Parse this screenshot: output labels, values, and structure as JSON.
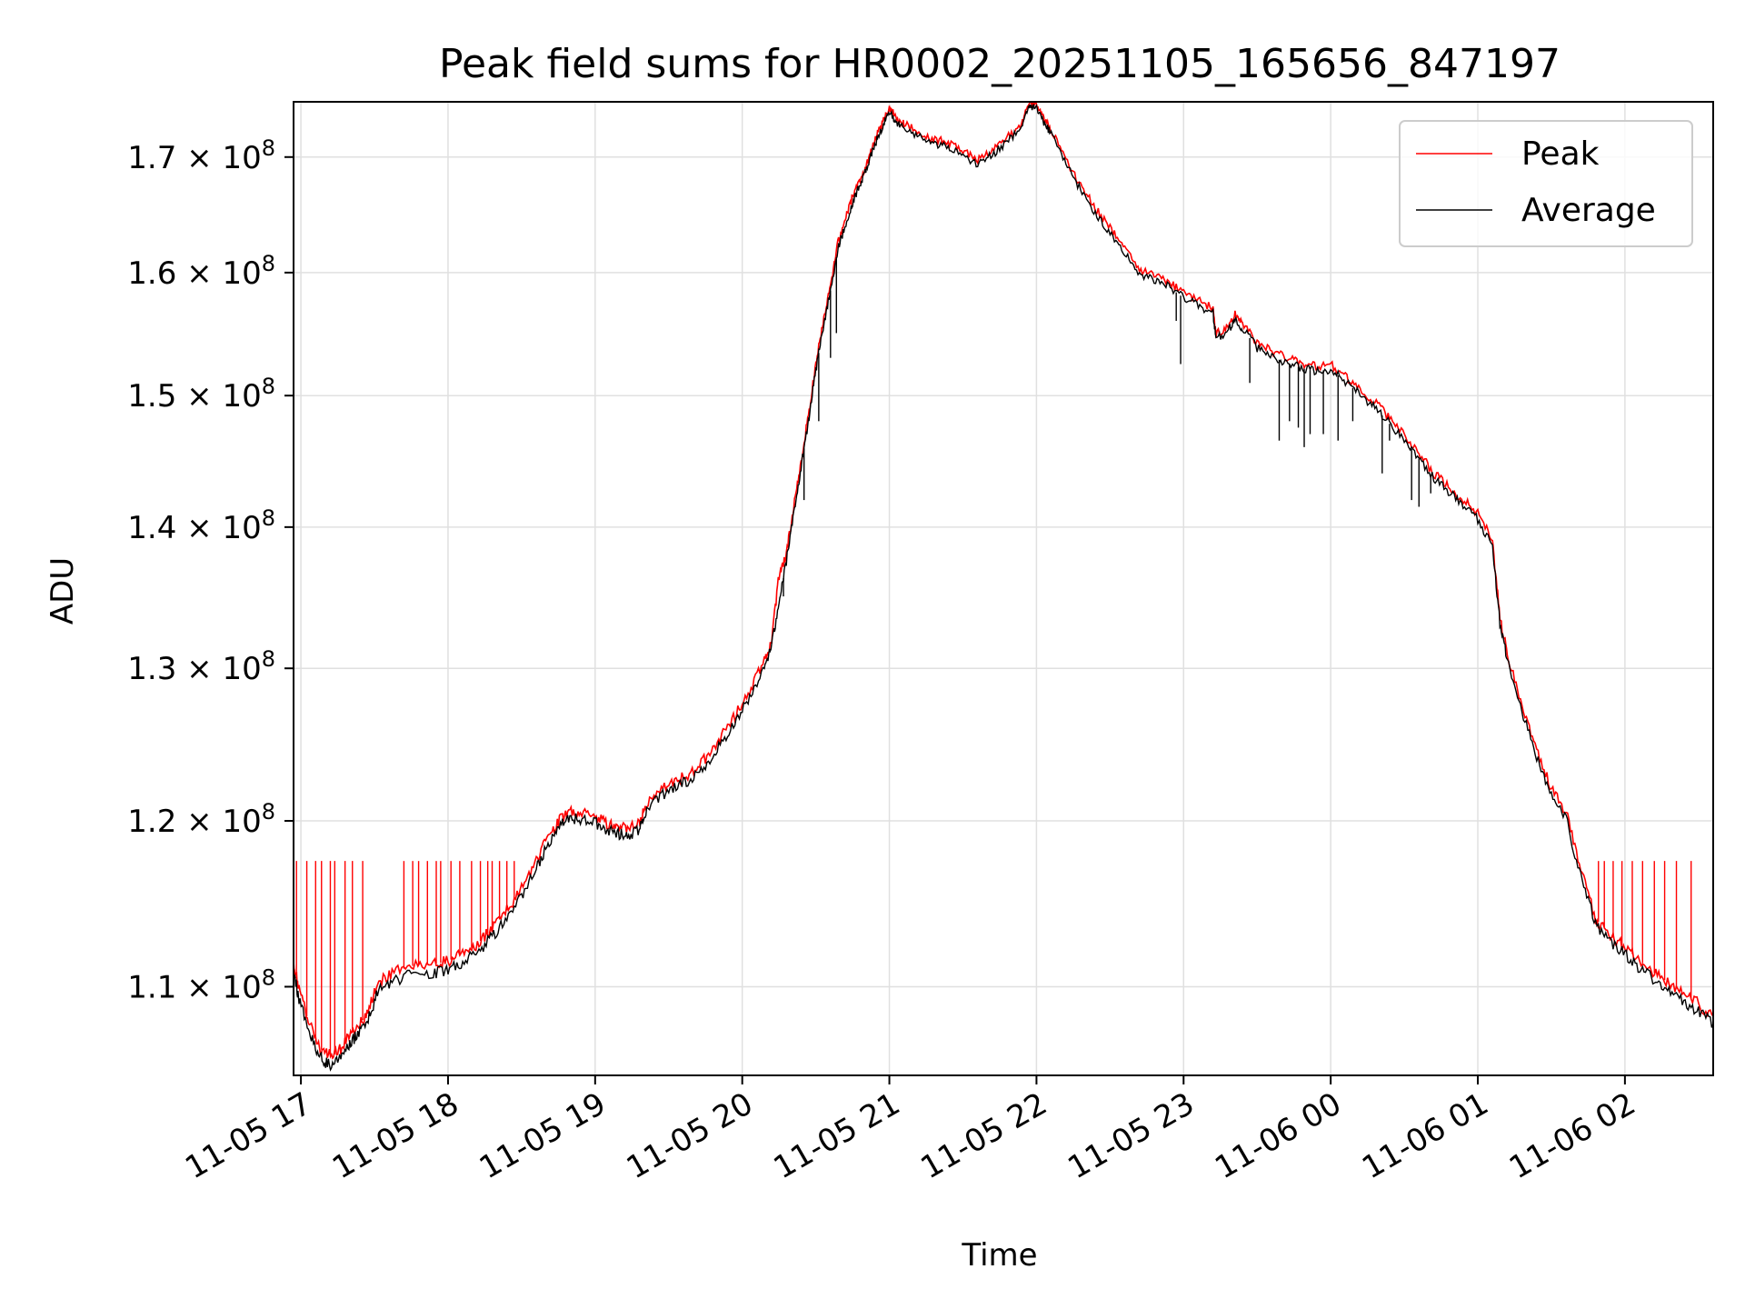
{
  "chart_data": {
    "type": "line",
    "title": "Peak field sums for HR0002_20251105_165656_847197",
    "xlabel": "Time",
    "ylabel": "ADU",
    "yscale": "log",
    "xlim_hours": [
      16.95,
      26.6
    ],
    "ylim": [
      105000000,
      175000000
    ],
    "grid": true,
    "legend_position": "top-right",
    "xticks": [
      {
        "hour": 17,
        "label": "11-05 17"
      },
      {
        "hour": 18,
        "label": "11-05 18"
      },
      {
        "hour": 19,
        "label": "11-05 19"
      },
      {
        "hour": 20,
        "label": "11-05 20"
      },
      {
        "hour": 21,
        "label": "11-05 21"
      },
      {
        "hour": 22,
        "label": "11-05 22"
      },
      {
        "hour": 23,
        "label": "11-05 23"
      },
      {
        "hour": 24,
        "label": "11-06 00"
      },
      {
        "hour": 25,
        "label": "11-06 01"
      },
      {
        "hour": 26,
        "label": "11-06 02"
      }
    ],
    "yticks": [
      {
        "value": 110000000,
        "mantissa": "1.1"
      },
      {
        "value": 120000000,
        "mantissa": "1.2"
      },
      {
        "value": 130000000,
        "mantissa": "1.3"
      },
      {
        "value": 140000000,
        "mantissa": "1.4"
      },
      {
        "value": 150000000,
        "mantissa": "1.5"
      },
      {
        "value": 160000000,
        "mantissa": "1.6"
      },
      {
        "value": 170000000,
        "mantissa": "1.7"
      }
    ],
    "ytick_base": "10",
    "ytick_exponent": "8",
    "ytick_times": "×",
    "series": [
      {
        "name": "Peak",
        "color": "#ff0000",
        "points": [
          [
            16.95,
            111.5
          ],
          [
            16.98,
            110.0
          ],
          [
            17.05,
            108.0
          ],
          [
            17.12,
            106.6
          ],
          [
            17.18,
            106.1
          ],
          [
            17.25,
            106.2
          ],
          [
            17.32,
            107.2
          ],
          [
            17.38,
            107.7
          ],
          [
            17.45,
            108.4
          ],
          [
            17.52,
            110.2
          ],
          [
            17.62,
            110.8
          ],
          [
            17.75,
            111.2
          ],
          [
            17.9,
            111.3
          ],
          [
            18.0,
            111.5
          ],
          [
            18.1,
            111.9
          ],
          [
            18.2,
            112.5
          ],
          [
            18.3,
            113.4
          ],
          [
            18.4,
            114.5
          ],
          [
            18.5,
            115.8
          ],
          [
            18.6,
            117.5
          ],
          [
            18.68,
            119.0
          ],
          [
            18.75,
            120.0
          ],
          [
            18.82,
            120.6
          ],
          [
            18.9,
            120.5
          ],
          [
            19.0,
            120.3
          ],
          [
            19.08,
            119.8
          ],
          [
            19.15,
            119.6
          ],
          [
            19.22,
            119.5
          ],
          [
            19.3,
            119.8
          ],
          [
            19.35,
            121.2
          ],
          [
            19.45,
            122.0
          ],
          [
            19.55,
            122.6
          ],
          [
            19.65,
            123.0
          ],
          [
            19.75,
            124.0
          ],
          [
            19.85,
            125.3
          ],
          [
            19.95,
            126.8
          ],
          [
            20.05,
            128.5
          ],
          [
            20.15,
            130.5
          ],
          [
            20.2,
            132.0
          ],
          [
            20.25,
            136.5
          ],
          [
            20.3,
            138.0
          ],
          [
            20.35,
            141.5
          ],
          [
            20.4,
            145.0
          ],
          [
            20.45,
            148.5
          ],
          [
            20.5,
            152.5
          ],
          [
            20.55,
            156.0
          ],
          [
            20.6,
            159.0
          ],
          [
            20.65,
            162.5
          ],
          [
            20.7,
            164.5
          ],
          [
            20.75,
            166.5
          ],
          [
            20.8,
            168.0
          ],
          [
            20.85,
            169.5
          ],
          [
            20.9,
            171.5
          ],
          [
            20.95,
            173.0
          ],
          [
            21.0,
            174.5
          ],
          [
            21.05,
            173.5
          ],
          [
            21.1,
            173.0
          ],
          [
            21.2,
            172.3
          ],
          [
            21.3,
            171.6
          ],
          [
            21.4,
            171.4
          ],
          [
            21.5,
            170.5
          ],
          [
            21.6,
            169.8
          ],
          [
            21.7,
            170.6
          ],
          [
            21.8,
            171.8
          ],
          [
            21.9,
            173.0
          ],
          [
            21.95,
            175.0
          ],
          [
            22.0,
            174.8
          ],
          [
            22.05,
            173.5
          ],
          [
            22.1,
            172.5
          ],
          [
            22.2,
            169.8
          ],
          [
            22.3,
            167.5
          ],
          [
            22.4,
            165.5
          ],
          [
            22.5,
            163.8
          ],
          [
            22.6,
            162.0
          ],
          [
            22.7,
            160.2
          ],
          [
            22.8,
            159.8
          ],
          [
            22.9,
            159.2
          ],
          [
            23.0,
            158.3
          ],
          [
            23.1,
            157.7
          ],
          [
            23.2,
            157.0
          ],
          [
            23.22,
            155.0
          ],
          [
            23.3,
            155.5
          ],
          [
            23.35,
            156.5
          ],
          [
            23.4,
            155.8
          ],
          [
            23.5,
            154.2
          ],
          [
            23.6,
            153.5
          ],
          [
            23.7,
            153.0
          ],
          [
            23.8,
            152.6
          ],
          [
            23.9,
            152.3
          ],
          [
            24.0,
            152.5
          ],
          [
            24.1,
            151.5
          ],
          [
            24.2,
            150.5
          ],
          [
            24.3,
            149.5
          ],
          [
            24.4,
            148.2
          ],
          [
            24.5,
            147.0
          ],
          [
            24.6,
            145.5
          ],
          [
            24.7,
            144.0
          ],
          [
            24.8,
            143.0
          ],
          [
            24.9,
            142.0
          ],
          [
            25.0,
            141.0
          ],
          [
            25.1,
            139.0
          ],
          [
            25.15,
            133.5
          ],
          [
            25.2,
            131.0
          ],
          [
            25.3,
            127.5
          ],
          [
            25.4,
            124.5
          ],
          [
            25.5,
            122.0
          ],
          [
            25.6,
            120.5
          ],
          [
            25.7,
            117.0
          ],
          [
            25.8,
            114.0
          ],
          [
            25.9,
            113.0
          ],
          [
            26.0,
            112.3
          ],
          [
            26.1,
            111.5
          ],
          [
            26.2,
            110.8
          ],
          [
            26.3,
            110.2
          ],
          [
            26.4,
            109.6
          ],
          [
            26.5,
            109.0
          ],
          [
            26.6,
            108.3
          ]
        ]
      },
      {
        "name": "Average",
        "color": "#000000",
        "points": [
          [
            16.95,
            111.0
          ],
          [
            16.98,
            109.5
          ],
          [
            17.05,
            107.5
          ],
          [
            17.12,
            106.1
          ],
          [
            17.18,
            105.6
          ],
          [
            17.25,
            105.7
          ],
          [
            17.32,
            106.7
          ],
          [
            17.38,
            107.2
          ],
          [
            17.45,
            107.9
          ],
          [
            17.52,
            109.7
          ],
          [
            17.62,
            110.3
          ],
          [
            17.75,
            110.7
          ],
          [
            17.9,
            110.8
          ],
          [
            18.0,
            111.0
          ],
          [
            18.1,
            111.4
          ],
          [
            18.2,
            112.0
          ],
          [
            18.3,
            112.9
          ],
          [
            18.4,
            114.0
          ],
          [
            18.5,
            115.3
          ],
          [
            18.6,
            117.0
          ],
          [
            18.68,
            118.6
          ],
          [
            18.75,
            119.6
          ],
          [
            18.82,
            120.2
          ],
          [
            18.9,
            120.1
          ],
          [
            19.0,
            119.9
          ],
          [
            19.08,
            119.4
          ],
          [
            19.15,
            119.2
          ],
          [
            19.22,
            119.1
          ],
          [
            19.3,
            119.4
          ],
          [
            19.35,
            120.8
          ],
          [
            19.45,
            121.6
          ],
          [
            19.55,
            122.2
          ],
          [
            19.65,
            122.6
          ],
          [
            19.75,
            123.6
          ],
          [
            19.85,
            124.9
          ],
          [
            19.95,
            126.4
          ],
          [
            20.05,
            128.1
          ],
          [
            20.15,
            130.1
          ],
          [
            20.2,
            131.6
          ],
          [
            20.25,
            134.5
          ],
          [
            20.3,
            137.5
          ],
          [
            20.35,
            141.0
          ],
          [
            20.4,
            144.5
          ],
          [
            20.45,
            148.0
          ],
          [
            20.5,
            152.0
          ],
          [
            20.55,
            155.5
          ],
          [
            20.6,
            158.5
          ],
          [
            20.65,
            162.0
          ],
          [
            20.7,
            164.0
          ],
          [
            20.75,
            166.0
          ],
          [
            20.8,
            167.6
          ],
          [
            20.85,
            169.1
          ],
          [
            20.9,
            171.1
          ],
          [
            20.95,
            172.6
          ],
          [
            21.0,
            174.1
          ],
          [
            21.05,
            173.1
          ],
          [
            21.1,
            172.6
          ],
          [
            21.2,
            171.9
          ],
          [
            21.3,
            171.2
          ],
          [
            21.4,
            171.0
          ],
          [
            21.5,
            170.1
          ],
          [
            21.6,
            169.4
          ],
          [
            21.7,
            170.2
          ],
          [
            21.8,
            171.4
          ],
          [
            21.9,
            172.6
          ],
          [
            21.95,
            174.6
          ],
          [
            22.0,
            174.4
          ],
          [
            22.05,
            173.1
          ],
          [
            22.1,
            172.1
          ],
          [
            22.2,
            169.4
          ],
          [
            22.3,
            167.1
          ],
          [
            22.4,
            165.1
          ],
          [
            22.5,
            163.4
          ],
          [
            22.6,
            161.6
          ],
          [
            22.7,
            159.8
          ],
          [
            22.8,
            159.4
          ],
          [
            22.9,
            158.8
          ],
          [
            23.0,
            157.9
          ],
          [
            23.1,
            157.3
          ],
          [
            23.2,
            156.6
          ],
          [
            23.22,
            154.6
          ],
          [
            23.3,
            155.1
          ],
          [
            23.35,
            156.1
          ],
          [
            23.4,
            155.4
          ],
          [
            23.5,
            153.8
          ],
          [
            23.6,
            153.1
          ],
          [
            23.7,
            152.6
          ],
          [
            23.8,
            152.2
          ],
          [
            23.9,
            151.9
          ],
          [
            24.0,
            152.1
          ],
          [
            24.1,
            151.1
          ],
          [
            24.2,
            150.1
          ],
          [
            24.3,
            149.1
          ],
          [
            24.4,
            147.8
          ],
          [
            24.5,
            146.6
          ],
          [
            24.6,
            145.1
          ],
          [
            24.7,
            143.6
          ],
          [
            24.8,
            142.6
          ],
          [
            24.9,
            141.6
          ],
          [
            25.0,
            140.6
          ],
          [
            25.1,
            138.6
          ],
          [
            25.15,
            133.1
          ],
          [
            25.2,
            130.6
          ],
          [
            25.3,
            127.1
          ],
          [
            25.4,
            124.1
          ],
          [
            25.5,
            121.6
          ],
          [
            25.6,
            120.1
          ],
          [
            25.7,
            116.6
          ],
          [
            25.8,
            113.6
          ],
          [
            25.9,
            112.6
          ],
          [
            26.0,
            111.9
          ],
          [
            26.1,
            111.1
          ],
          [
            26.2,
            110.4
          ],
          [
            26.3,
            109.8
          ],
          [
            26.4,
            109.2
          ],
          [
            26.5,
            108.6
          ],
          [
            26.6,
            107.9
          ]
        ]
      }
    ],
    "peak_spikes": {
      "value": 117.5,
      "hours": [
        16.97,
        17.04,
        17.1,
        17.14,
        17.2,
        17.23,
        17.3,
        17.35,
        17.42,
        17.7,
        17.76,
        17.8,
        17.86,
        17.92,
        17.95,
        18.02,
        18.08,
        18.16,
        18.22,
        18.27,
        18.3,
        18.35,
        18.4,
        18.45,
        25.82,
        25.86,
        25.92,
        25.98,
        26.05,
        26.12,
        26.2,
        26.27,
        26.35,
        26.45
      ]
    },
    "average_dips": [
      [
        20.28,
        135.0
      ],
      [
        20.42,
        142.0
      ],
      [
        20.52,
        148.0
      ],
      [
        20.6,
        153.0
      ],
      [
        20.64,
        155.0
      ],
      [
        22.95,
        156.0
      ],
      [
        22.98,
        152.5
      ],
      [
        23.45,
        151.0
      ],
      [
        23.65,
        146.5
      ],
      [
        23.72,
        148.0
      ],
      [
        23.78,
        147.5
      ],
      [
        23.82,
        146.0
      ],
      [
        23.86,
        147.0
      ],
      [
        23.95,
        147.0
      ],
      [
        24.05,
        146.5
      ],
      [
        24.15,
        148.0
      ],
      [
        24.35,
        144.0
      ],
      [
        24.4,
        146.5
      ],
      [
        24.55,
        142.0
      ],
      [
        24.6,
        141.5
      ],
      [
        24.68,
        142.5
      ]
    ]
  }
}
